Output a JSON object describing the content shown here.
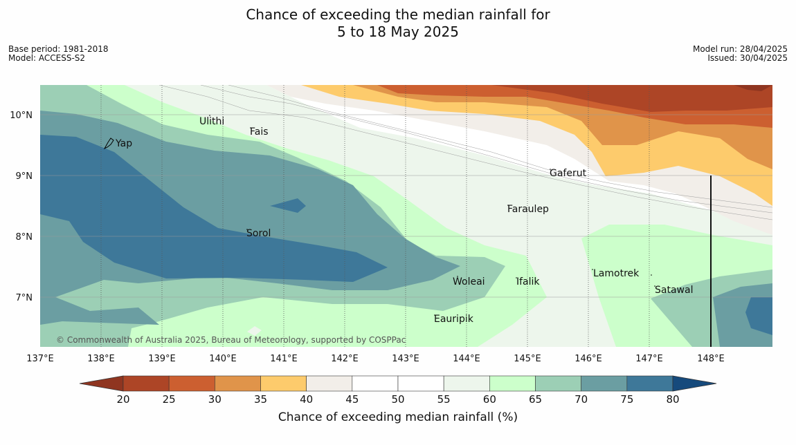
{
  "title_line1": "Chance of exceeding the median rainfall for",
  "title_line2": "5 to 18 May 2025",
  "meta_left": [
    "Base period: 1981-2018",
    "Model: ACCESS-S2"
  ],
  "meta_right": [
    "Model run: 28/04/2025",
    "Issued: 30/04/2025"
  ],
  "copyright": "© Commonwealth of Australia 2025, Bureau of Meteorology, supported by COSPPac",
  "lon_labels": [
    "137°E",
    "138°E",
    "139°E",
    "140°E",
    "141°E",
    "142°E",
    "143°E",
    "144°E",
    "145°E",
    "146°E",
    "147°E",
    "148°E"
  ],
  "lat_labels": [
    "10°N",
    "9°N",
    "8°N",
    "7°N"
  ],
  "places": [
    "Ulithi",
    "Fais",
    "Yap",
    "Gaferut",
    "Faraulep",
    "Sorol",
    "Lamotrek",
    "Woleai",
    "Ifalik",
    "Satawal",
    "Eauripik"
  ],
  "colorbar": {
    "title": "Chance of exceeding median rainfall (%)",
    "ticks": [
      "20",
      "25",
      "30",
      "35",
      "40",
      "45",
      "50",
      "55",
      "60",
      "65",
      "70",
      "75",
      "80"
    ],
    "colors": [
      "#ad4526",
      "#cc5f30",
      "#e0944a",
      "#fdcb6c",
      "#f2eee9",
      "#ffffff",
      "#ffffff",
      "#edf6ec",
      "#ccffcb",
      "#9ccfb5",
      "#6b9ea2",
      "#3e7899"
    ],
    "under_color": "#8f3520",
    "over_color": "#164a7c"
  }
}
